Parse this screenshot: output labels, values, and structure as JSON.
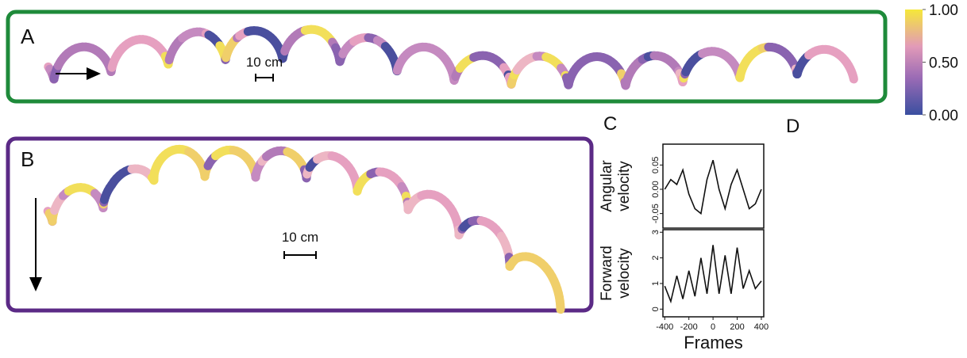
{
  "figure": {
    "panels": {
      "A": {
        "label": "A",
        "scale": "10 cm"
      },
      "B": {
        "label": "B",
        "scale": "10 cm"
      },
      "C": {
        "label": "C"
      },
      "D": {
        "label": "D"
      }
    },
    "colorbar": {
      "lim": [
        0,
        1
      ],
      "ticks": [
        {
          "value": 0,
          "label": "0.00"
        },
        {
          "value": 0.5,
          "label": "0.50"
        },
        {
          "value": 1,
          "label": "1.00"
        }
      ]
    }
  },
  "chart_data": [
    {
      "type": "line",
      "ylabel": [
        "Angular",
        "velocity"
      ],
      "x": [
        -400,
        -350,
        -300,
        -250,
        -200,
        -150,
        -100,
        -50,
        0,
        50,
        100,
        150,
        200,
        250,
        300,
        350,
        400
      ],
      "series": [
        {
          "color": "#111111",
          "values": [
            0.0,
            0.02,
            0.01,
            0.04,
            -0.01,
            -0.04,
            -0.05,
            0.02,
            0.06,
            0.0,
            -0.04,
            0.01,
            0.04,
            0.0,
            -0.04,
            -0.03,
            0.0
          ]
        }
      ],
      "xlim": [
        -415,
        420
      ],
      "ylim": [
        -0.08,
        0.093
      ],
      "yticks": [
        {
          "value": -0.05,
          "label": "-0.05"
        },
        {
          "value": 0,
          "label": "0.00"
        },
        {
          "value": 0.05,
          "label": "0.05"
        }
      ]
    },
    {
      "type": "line",
      "ylabel": [
        "Forward",
        "velocity"
      ],
      "xlabel": "Frames",
      "x": [
        -400,
        -350,
        -300,
        -250,
        -200,
        -150,
        -100,
        -50,
        0,
        50,
        100,
        150,
        200,
        250,
        300,
        350,
        400
      ],
      "series": [
        {
          "color": "#111111",
          "values": [
            0.9,
            0.3,
            1.3,
            0.4,
            1.5,
            0.5,
            2.0,
            0.6,
            2.5,
            0.6,
            2.1,
            0.6,
            2.4,
            0.8,
            1.5,
            0.8,
            1.1
          ]
        }
      ],
      "xlim": [
        -415,
        420
      ],
      "ylim": [
        -0.3,
        3.1
      ],
      "xticks": [
        -400,
        -200,
        0,
        200,
        400
      ],
      "yticks": [
        0,
        1,
        2,
        3
      ]
    }
  ]
}
